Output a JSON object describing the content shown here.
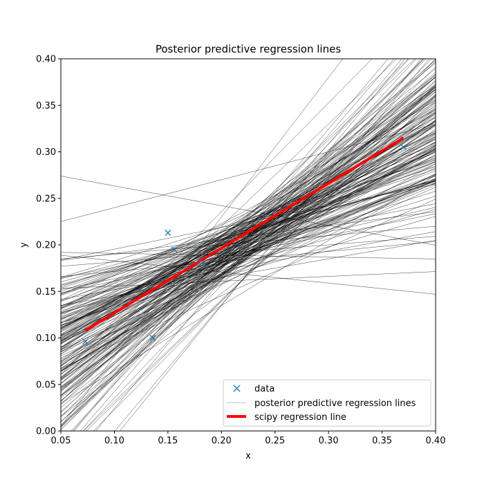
{
  "chart_data": {
    "type": "line",
    "title": "Posterior predictive regression lines",
    "xlabel": "x",
    "ylabel": "y",
    "xlim": [
      0.05,
      0.4
    ],
    "ylim": [
      0.0,
      0.4
    ],
    "xticks": [
      "0.05",
      "0.10",
      "0.15",
      "0.20",
      "0.25",
      "0.30",
      "0.35",
      "0.40"
    ],
    "yticks": [
      "0.00",
      "0.05",
      "0.10",
      "0.15",
      "0.20",
      "0.25",
      "0.30",
      "0.35",
      "0.40"
    ],
    "grid": false,
    "legend_position": "lower-right",
    "series": [
      {
        "name": "data",
        "style": "markers-x",
        "color": "#1f77b4",
        "x": [
          0.073,
          0.136,
          0.15,
          0.156,
          0.182,
          0.37
        ],
        "y": [
          0.096,
          0.1,
          0.213,
          0.195,
          0.181,
          0.305
        ]
      },
      {
        "name": "posterior predictive regression lines",
        "style": "thin-lines",
        "color": "#000000",
        "legend_color": "#bfbfbf",
        "count": 200,
        "lines": [
          {
            "slope": 0.85,
            "intercept": 0.04
          },
          {
            "slope": 0.6,
            "intercept": 0.08
          },
          {
            "slope": 1.1,
            "intercept": 0.0
          },
          {
            "slope": 0.1,
            "intercept": 0.18
          },
          {
            "slope": 0.2,
            "intercept": 0.125
          },
          {
            "slope": 1.5,
            "intercept": -0.07
          },
          {
            "slope": 0.3,
            "intercept": 0.21
          }
        ]
      },
      {
        "name": "scipy regression line",
        "style": "thick-line",
        "color": "#ff0000",
        "x": [
          0.073,
          0.37
        ],
        "y": [
          0.108,
          0.315
        ]
      }
    ]
  },
  "legend": {
    "items": [
      {
        "label": "data"
      },
      {
        "label": "posterior predictive regression lines"
      },
      {
        "label": "scipy regression line"
      }
    ]
  }
}
